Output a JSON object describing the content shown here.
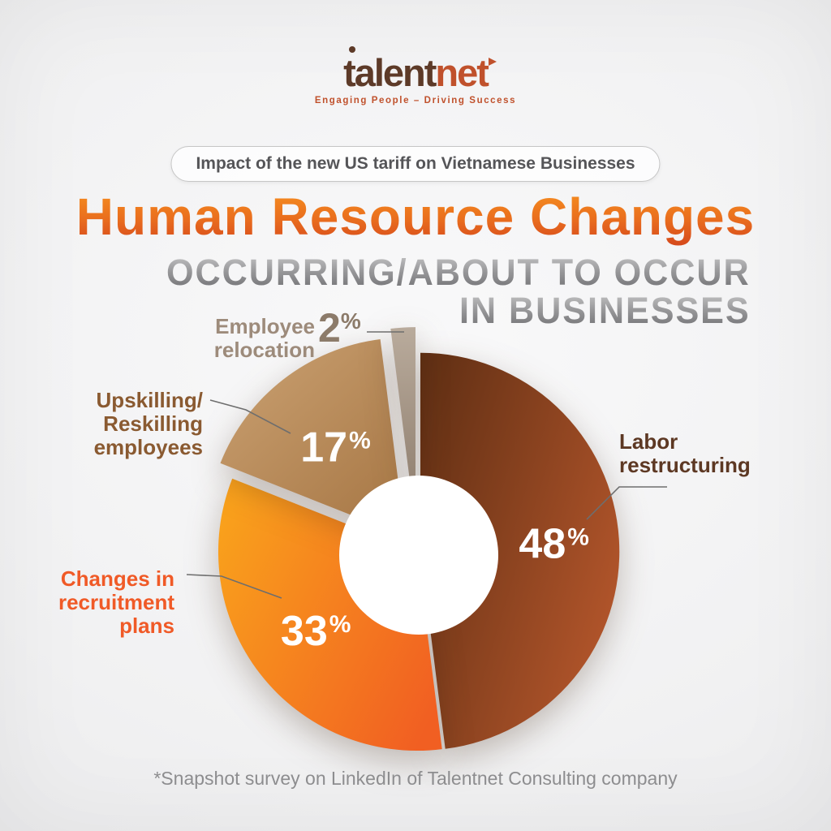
{
  "brand": {
    "logo_talent": "talent",
    "logo_net": "net",
    "tagline": "Engaging People – Driving Success"
  },
  "badge": {
    "text": "Impact of the new US tariff on Vietnamese Businesses"
  },
  "title": {
    "text": "Human Resource Changes"
  },
  "subtitle": {
    "line1": "OCCURRING/ABOUT TO OCCUR",
    "line2": "IN BUSINESSES"
  },
  "footnote": {
    "text": "*Snapshot survey on LinkedIn of Talentnet Consulting company"
  },
  "chart_data": {
    "type": "pie",
    "donut": true,
    "unit": "%",
    "title": "Human Resource Changes Occurring/About to Occur in Businesses",
    "source_note": "*Snapshot survey on LinkedIn of Talentnet Consulting company",
    "legend_position": "callouts",
    "start_angle_deg": 0,
    "direction": "clockwise",
    "slices": [
      {
        "label": "Labor restructuring",
        "label_lines": [
          "Labor",
          "restructuring"
        ],
        "value": 48,
        "color_start": "#5e2e13",
        "color_end": "#b0542a",
        "label_color": "#5d3823",
        "explode": 4
      },
      {
        "label": "Changes in recruitment plans",
        "label_lines": [
          "Changes in",
          "recruitment",
          "plans"
        ],
        "value": 33,
        "color_start": "#f9a01c",
        "color_end": "#f15f22",
        "label_color": "#f05a27",
        "explode": 0
      },
      {
        "label": "Upskilling/ Reskilling employees",
        "label_lines": [
          "Upskilling/",
          "Reskilling",
          "employees"
        ],
        "value": 17,
        "color_start": "#cba273",
        "color_end": "#a87846",
        "label_color": "#8a5a31",
        "explode": 24
      },
      {
        "label": "Employee relocation",
        "label_lines": [
          "Employee",
          "relocation"
        ],
        "value": 2,
        "color_start": "#b9ab9c",
        "color_end": "#897868",
        "label_color": "#9d8b7b",
        "explode": 32
      }
    ]
  }
}
